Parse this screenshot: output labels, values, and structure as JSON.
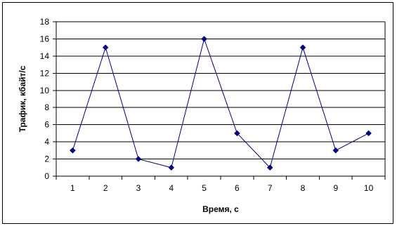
{
  "chart_data": {
    "type": "line",
    "title": "",
    "xlabel": "Время, с",
    "ylabel": "Трафик, кбайт/с",
    "categories": [
      "1",
      "2",
      "3",
      "4",
      "5",
      "6",
      "7",
      "8",
      "9",
      "10"
    ],
    "series": [
      {
        "values": [
          3,
          15,
          2,
          1,
          16,
          5,
          1,
          15,
          3,
          5
        ],
        "color": "#000080",
        "marker": "diamond"
      }
    ],
    "ylim": [
      0,
      18
    ],
    "ytick_step": 2,
    "grid": true,
    "legend": "none"
  }
}
